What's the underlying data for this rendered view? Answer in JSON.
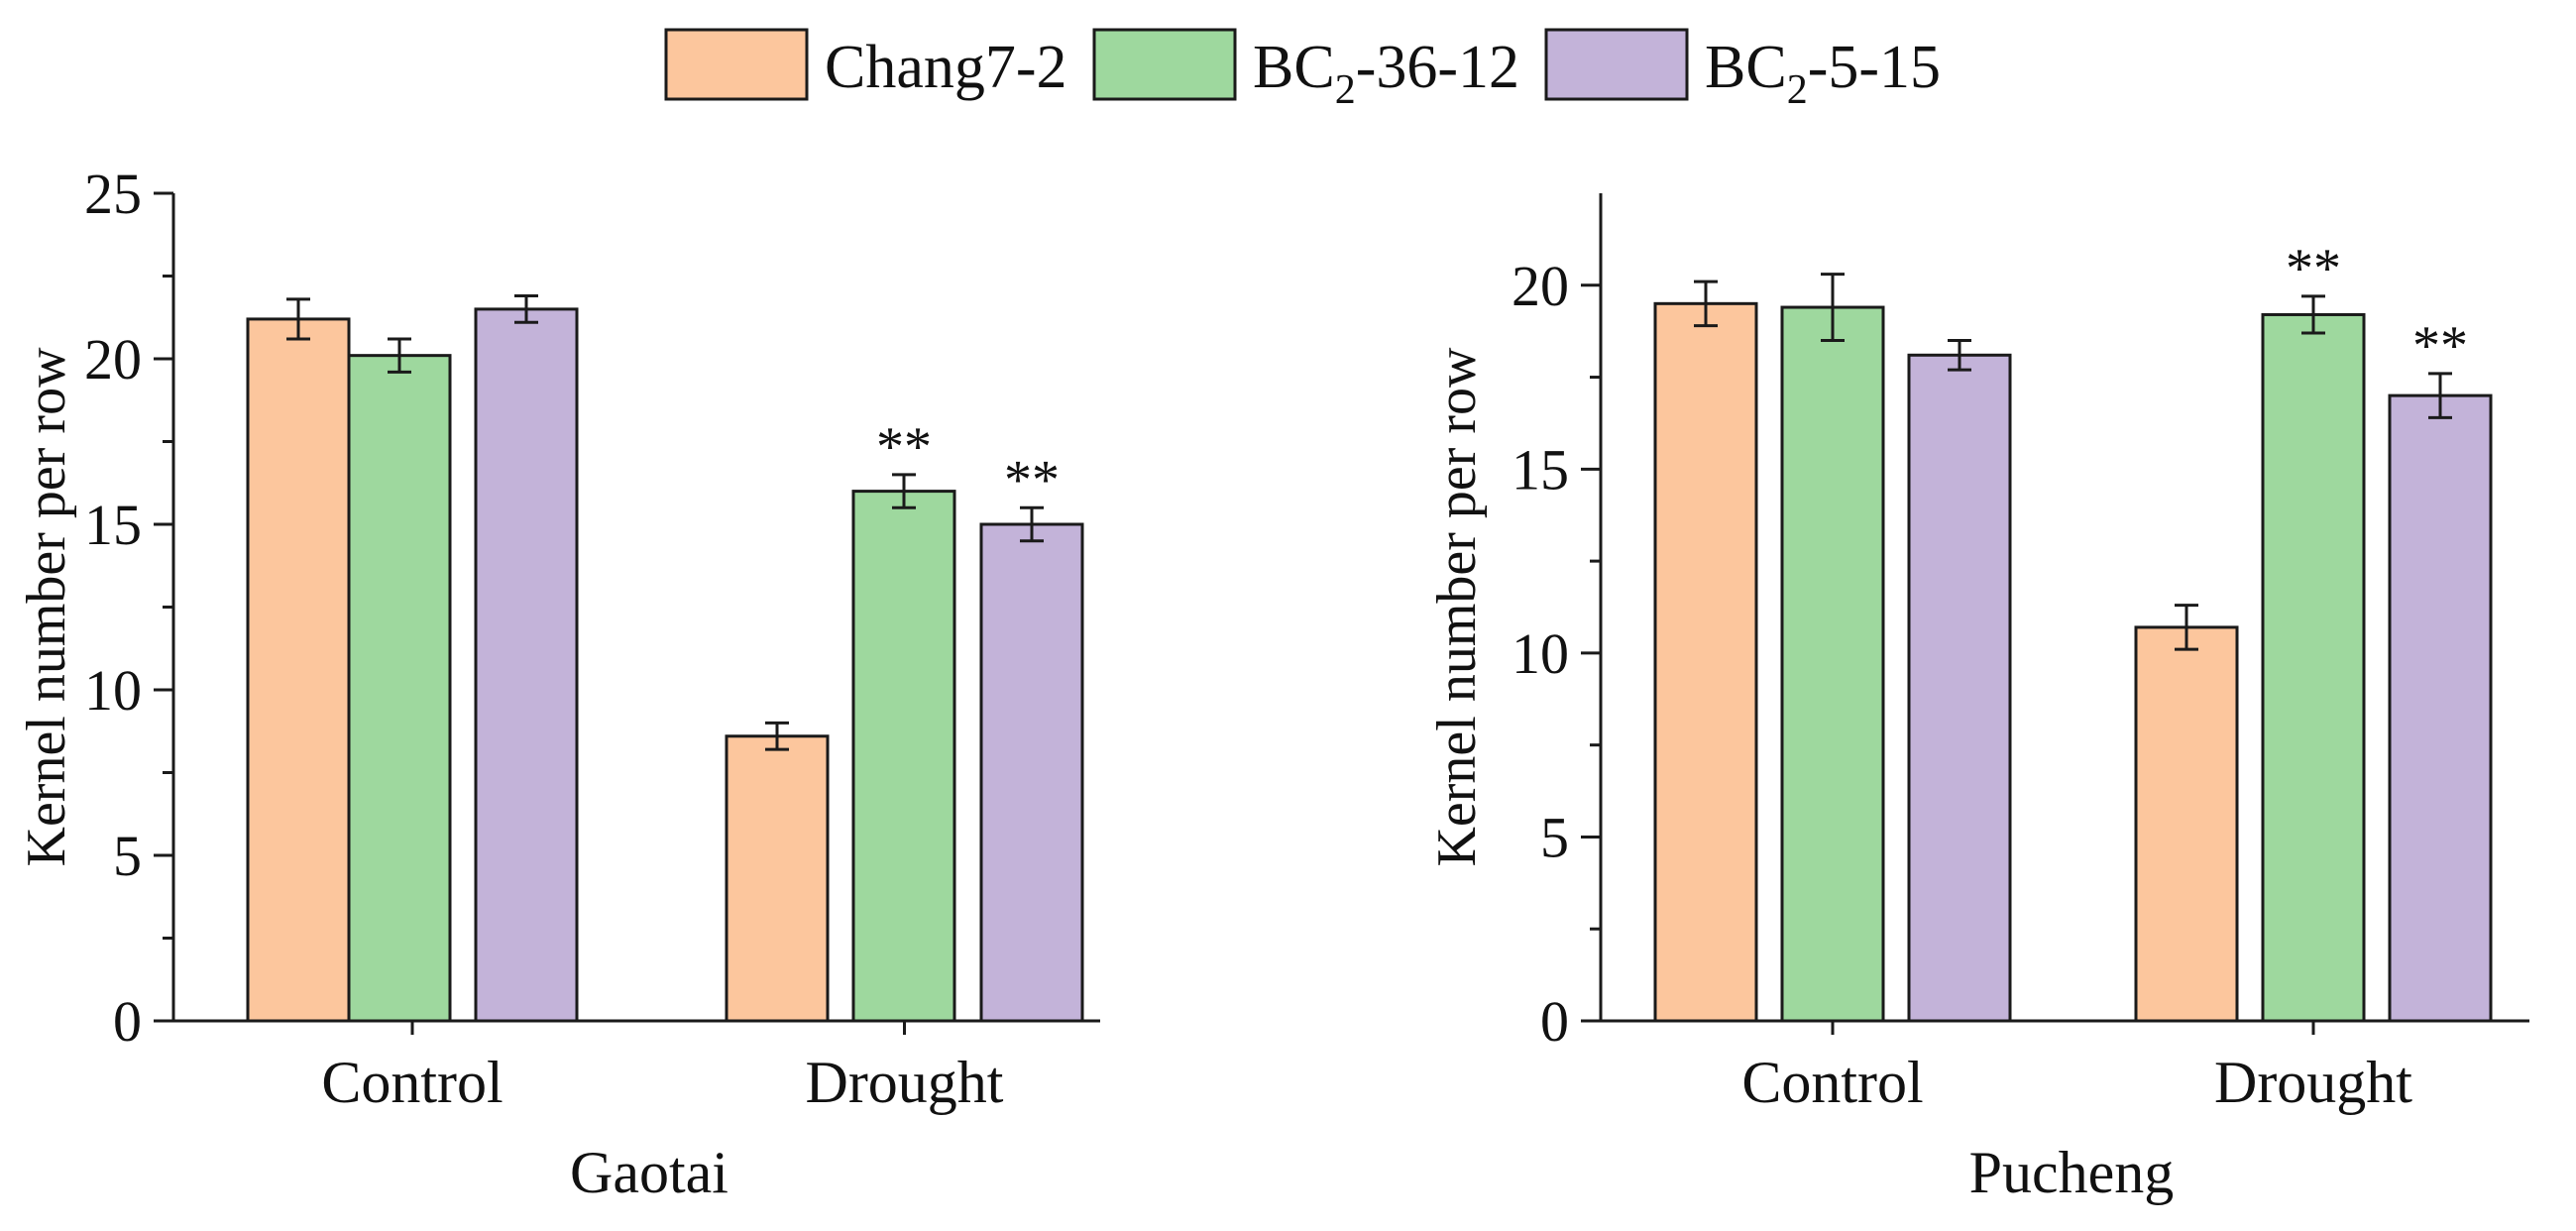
{
  "legend": {
    "items": [
      {
        "name": "Chang7-2",
        "color": "#fcc69d"
      },
      {
        "name": "BC2-36-12",
        "base": "BC",
        "sub": "2",
        "rest": "-36-12",
        "color": "#9ed89e"
      },
      {
        "name": "BC2-5-15",
        "base": "BC",
        "sub": "2",
        "rest": "-5-15",
        "color": "#c3b3d9"
      }
    ]
  },
  "chart_data": [
    {
      "type": "bar",
      "title": "",
      "xlabel": "Gaotai",
      "ylabel": "Kernel number per row",
      "ylim": [
        0,
        25
      ],
      "yticks": [
        0,
        5,
        10,
        15,
        20,
        25
      ],
      "categories": [
        "Control",
        "Drought"
      ],
      "series": [
        {
          "name": "Chang7-2",
          "values": [
            21.2,
            8.6
          ],
          "errors": [
            0.6,
            0.4
          ],
          "annotations": [
            "",
            ""
          ]
        },
        {
          "name": "BC2-36-12",
          "values": [
            20.1,
            16.0
          ],
          "errors": [
            0.5,
            0.5
          ],
          "annotations": [
            "",
            "**"
          ]
        },
        {
          "name": "BC2-5-15",
          "values": [
            21.5,
            15.0
          ],
          "errors": [
            0.4,
            0.5
          ],
          "annotations": [
            "",
            "**"
          ]
        }
      ]
    },
    {
      "type": "bar",
      "title": "",
      "xlabel": "Pucheng",
      "ylabel": "Kernel number per row",
      "ylim": [
        0,
        22.5
      ],
      "yticks": [
        0,
        5,
        10,
        15,
        20
      ],
      "categories": [
        "Control",
        "Drought"
      ],
      "series": [
        {
          "name": "Chang7-2",
          "values": [
            19.5,
            10.7
          ],
          "errors": [
            0.6,
            0.6
          ],
          "annotations": [
            "",
            ""
          ]
        },
        {
          "name": "BC2-36-12",
          "values": [
            19.4,
            19.2
          ],
          "errors": [
            0.9,
            0.5
          ],
          "annotations": [
            "",
            "**"
          ]
        },
        {
          "name": "BC2-5-15",
          "values": [
            18.1,
            17.0
          ],
          "errors": [
            0.4,
            0.6
          ],
          "annotations": [
            "",
            "**"
          ]
        }
      ]
    }
  ]
}
